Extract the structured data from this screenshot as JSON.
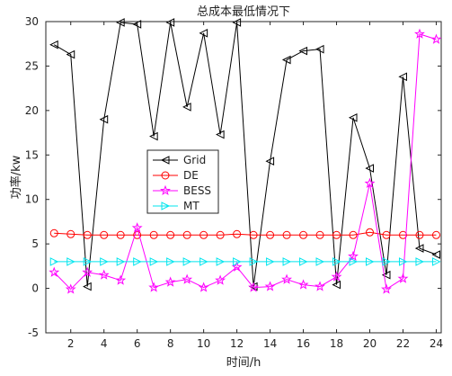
{
  "chart_data": {
    "type": "line",
    "title": "总成本最低情况下",
    "xlabel": "时间/h",
    "ylabel": "功率/kw",
    "xlim": [
      0.5,
      24.3
    ],
    "ylim": [
      -5,
      30
    ],
    "xticks": [
      2,
      4,
      6,
      8,
      10,
      12,
      14,
      16,
      18,
      20,
      22,
      24
    ],
    "yticks": [
      -5,
      0,
      5,
      10,
      15,
      20,
      25,
      30
    ],
    "grid": false,
    "legend_position": "center-left",
    "x": [
      1,
      2,
      3,
      4,
      5,
      6,
      7,
      8,
      9,
      10,
      11,
      12,
      13,
      14,
      15,
      16,
      17,
      18,
      19,
      20,
      21,
      22,
      23,
      24
    ],
    "series": [
      {
        "name": "Grid",
        "color": "#000000",
        "marker": "triangle-left",
        "values": [
          27.4,
          26.3,
          0.2,
          19.0,
          29.9,
          29.7,
          17.1,
          29.9,
          20.4,
          28.7,
          17.3,
          29.9,
          0.2,
          14.3,
          25.7,
          26.7,
          26.9,
          0.4,
          19.2,
          13.5,
          1.5,
          23.8,
          4.5,
          3.8
        ]
      },
      {
        "name": "DE",
        "color": "#ff0000",
        "marker": "circle",
        "values": [
          6.2,
          6.1,
          6.0,
          6.0,
          6.0,
          6.0,
          6.0,
          6.0,
          6.0,
          6.0,
          6.0,
          6.1,
          6.0,
          6.0,
          6.0,
          6.0,
          6.0,
          6.0,
          6.0,
          6.3,
          6.0,
          6.0,
          6.0,
          6.0
        ]
      },
      {
        "name": "BESS",
        "color": "#ff00ff",
        "marker": "star",
        "values": [
          1.8,
          -0.1,
          1.8,
          1.5,
          0.9,
          6.8,
          0.1,
          0.7,
          1.0,
          0.1,
          0.9,
          2.4,
          0.1,
          0.2,
          1.0,
          0.4,
          0.2,
          1.3,
          3.6,
          11.8,
          -0.1,
          1.1,
          28.6,
          28.0
        ]
      },
      {
        "name": "MT",
        "color": "#00e5ee",
        "marker": "triangle-right",
        "values": [
          3.0,
          3.0,
          3.0,
          3.0,
          3.0,
          3.0,
          3.0,
          3.0,
          3.0,
          3.0,
          3.0,
          3.0,
          3.0,
          3.0,
          3.0,
          3.0,
          3.0,
          3.0,
          3.0,
          3.0,
          3.0,
          3.0,
          3.0,
          3.0
        ]
      }
    ]
  }
}
